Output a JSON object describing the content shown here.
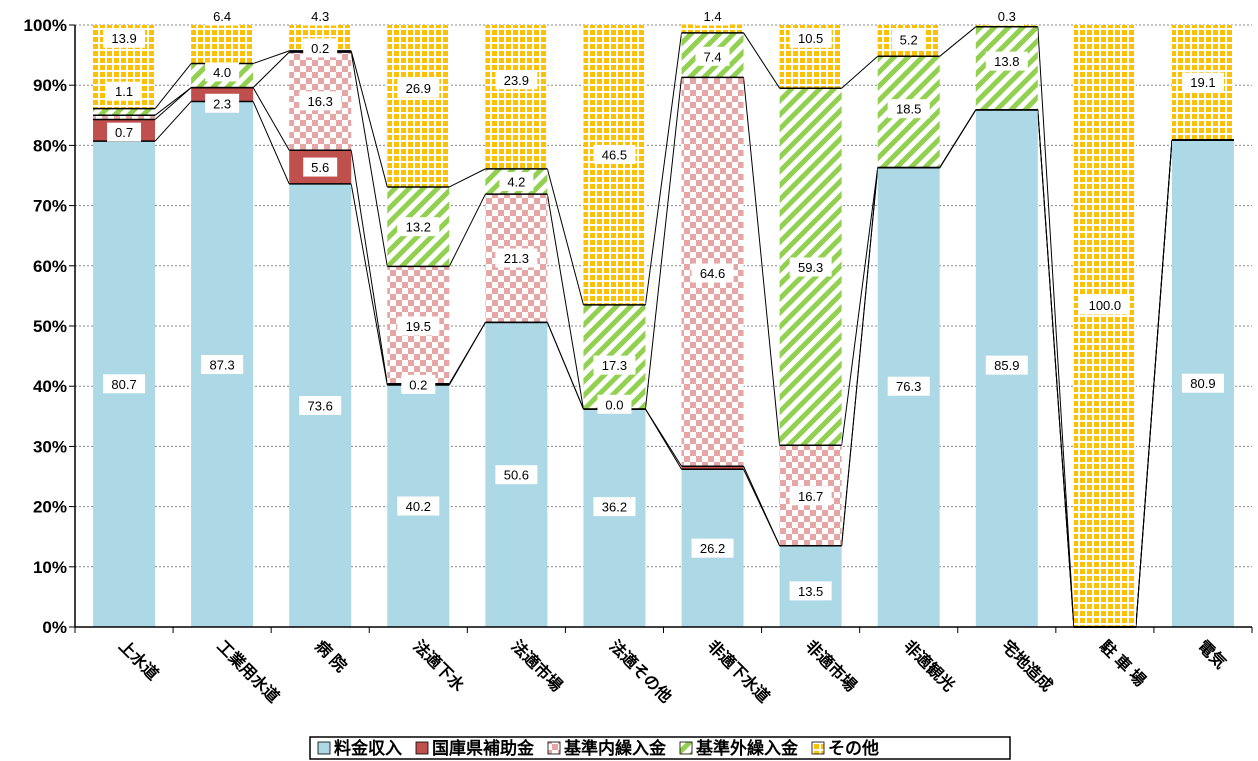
{
  "chart_data": {
    "type": "bar",
    "stacked": true,
    "percent": true,
    "categories": [
      "上水道",
      "工業用水道",
      "病 院",
      "法適下水",
      "法適市場",
      "法適その他",
      "非適下水道",
      "非適市場",
      "非適観光",
      "宅地造成",
      "駐 車 場",
      "電気"
    ],
    "series": [
      {
        "name": "料金収入",
        "color": "#add8e6",
        "pattern": "solid",
        "values": [
          80.7,
          87.3,
          73.6,
          40.2,
          50.6,
          36.2,
          26.2,
          13.5,
          76.3,
          85.9,
          0,
          80.9
        ]
      },
      {
        "name": "国庫県補助金",
        "color": "#c0504d",
        "pattern": "solid",
        "values": [
          3.6,
          2.3,
          5.6,
          0.2,
          0,
          0.0,
          0.5,
          0,
          0,
          0,
          0,
          0
        ]
      },
      {
        "name": "基準内繰入金",
        "color": "#e6a6a6",
        "pattern": "checker",
        "values": [
          0.7,
          0,
          16.3,
          19.5,
          21.3,
          0,
          64.6,
          16.7,
          0,
          0,
          0,
          0
        ]
      },
      {
        "name": "基準外繰入金",
        "color": "#92d050",
        "pattern": "diagonal",
        "values": [
          1.1,
          4.0,
          0.2,
          13.2,
          4.2,
          17.3,
          7.4,
          59.3,
          18.5,
          13.8,
          0,
          0
        ]
      },
      {
        "name": "その他",
        "color": "#ffc000",
        "pattern": "grid",
        "values": [
          13.9,
          6.4,
          4.3,
          26.9,
          23.9,
          46.5,
          1.4,
          10.5,
          5.2,
          0.3,
          100.0,
          19.1
        ]
      }
    ],
    "data_labels": [
      [
        {
          "text": "80.7",
          "at": 40.4
        },
        {
          "text": "0.7",
          "at": 82.2
        },
        {
          "text": "1.1",
          "at": 89.0
        },
        {
          "text": "13.9",
          "at": 97.8
        }
      ],
      [
        {
          "text": "87.3",
          "at": 43.6
        },
        {
          "text": "2.3",
          "at": 87.0
        },
        {
          "text": "4.0",
          "at": 92.2
        },
        {
          "text": "6.4",
          "at": 101.5
        }
      ],
      [
        {
          "text": "73.6",
          "at": 36.8
        },
        {
          "text": "5.6",
          "at": 76.4
        },
        {
          "text": "16.3",
          "at": 87.4
        },
        {
          "text": "0.2",
          "at": 96.2
        },
        {
          "text": "4.3",
          "at": 101.5
        }
      ],
      [
        {
          "text": "40.2",
          "at": 20.1
        },
        {
          "text": "0.2",
          "at": 40.3
        },
        {
          "text": "19.5",
          "at": 50.0
        },
        {
          "text": "13.2",
          "at": 66.5
        },
        {
          "text": "26.9",
          "at": 89.5
        }
      ],
      [
        {
          "text": "50.6",
          "at": 25.3
        },
        {
          "text": "21.3",
          "at": 61.3
        },
        {
          "text": "4.2",
          "at": 74.0
        },
        {
          "text": "23.9",
          "at": 90.9
        }
      ],
      [
        {
          "text": "36.2",
          "at": 20.0
        },
        {
          "text": "0.0",
          "at": 37.0
        },
        {
          "text": "17.3",
          "at": 43.5
        },
        {
          "text": "46.5",
          "at": 78.5
        }
      ],
      [
        {
          "text": "26.2",
          "at": 13.1
        },
        {
          "text": "64.6",
          "at": 58.8
        },
        {
          "text": "7.4",
          "at": 94.8
        },
        {
          "text": "1.4",
          "at": 101.5
        }
      ],
      [
        {
          "text": "13.5",
          "at": 6.0
        },
        {
          "text": "16.7",
          "at": 21.8
        },
        {
          "text": "59.3",
          "at": 59.8
        },
        {
          "text": "10.5",
          "at": 97.8
        }
      ],
      [
        {
          "text": "76.3",
          "at": 40.0
        },
        {
          "text": "18.5",
          "at": 86.1
        },
        {
          "text": "5.2",
          "at": 97.6
        }
      ],
      [
        {
          "text": "85.9",
          "at": 43.5
        },
        {
          "text": "13.8",
          "at": 94.0
        },
        {
          "text": "0.3",
          "at": 101.5
        }
      ],
      [
        {
          "text": "100.0",
          "at": 53.5
        }
      ],
      [
        {
          "text": "80.9",
          "at": 40.5
        },
        {
          "text": "19.1",
          "at": 90.5
        }
      ]
    ],
    "yticks": [
      "0%",
      "10%",
      "20%",
      "30%",
      "40%",
      "50%",
      "60%",
      "70%",
      "80%",
      "90%",
      "100%"
    ],
    "ylim": [
      0,
      100
    ],
    "grid": true,
    "legend_placement": "bottom",
    "title": "",
    "xlabel": "",
    "ylabel": ""
  }
}
